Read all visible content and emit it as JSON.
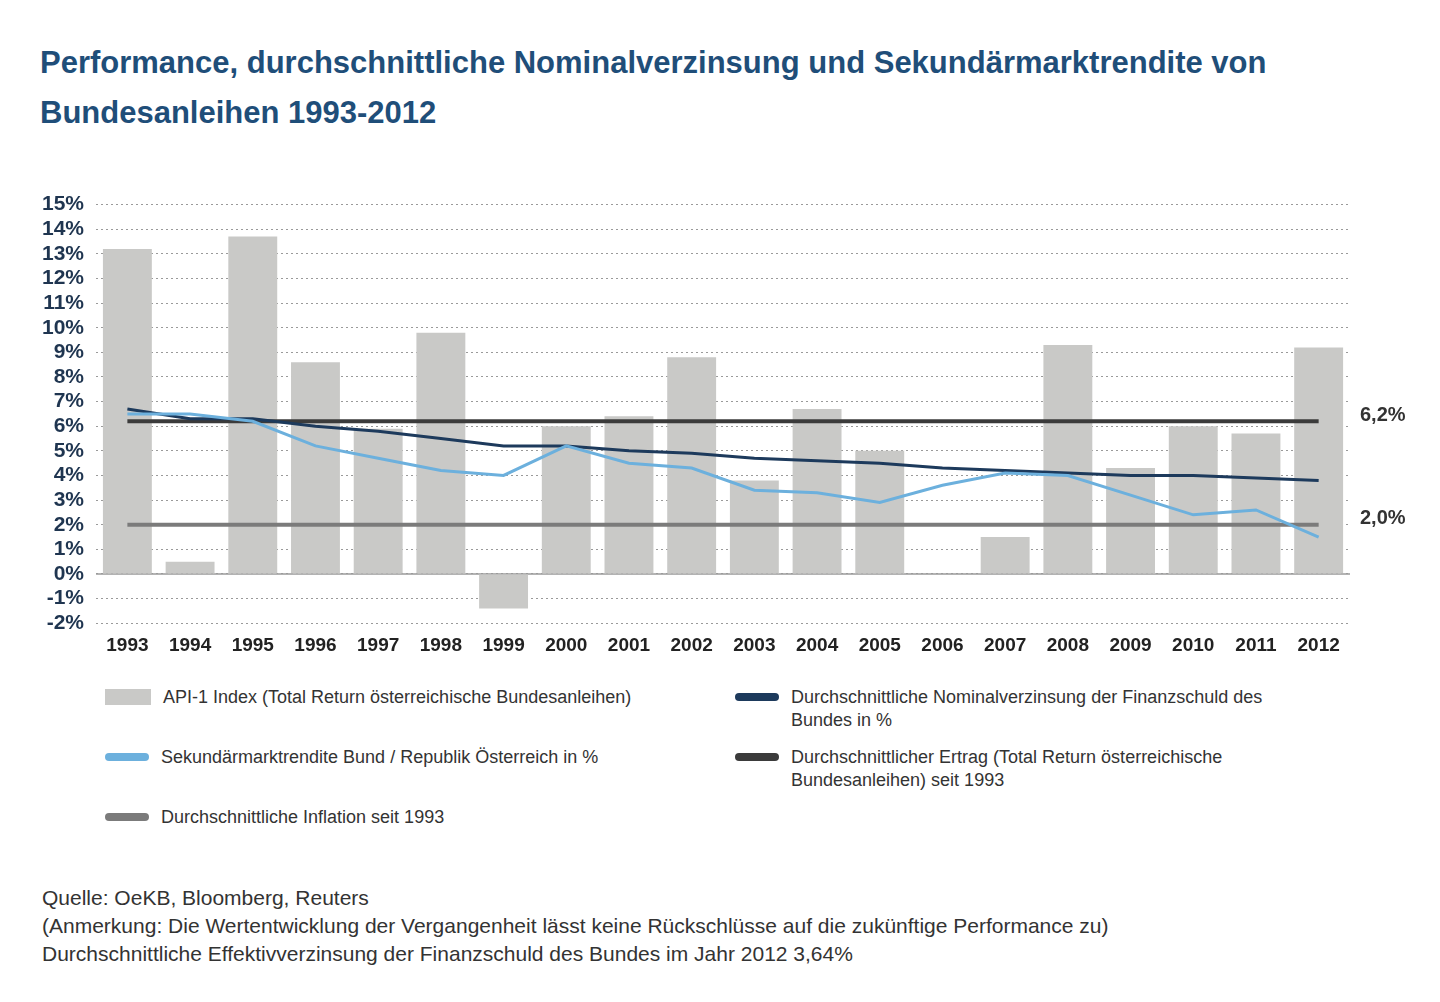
{
  "chart_data": {
    "type": "bar",
    "title": "Performance, durchschnittliche Nominalverzinsung und Sekundärmarktrendite von Bundesanleihen 1993-2012",
    "categories": [
      "1993",
      "1994",
      "1995",
      "1996",
      "1997",
      "1998",
      "1999",
      "2000",
      "2001",
      "2002",
      "2003",
      "2004",
      "2005",
      "2006",
      "2007",
      "2008",
      "2009",
      "2010",
      "2011",
      "2012"
    ],
    "series": [
      {
        "name": "API-1 Index (Total Return österreichische Bundesanleihen)",
        "type": "bar",
        "color": "#c9c9c7",
        "values": [
          13.2,
          0.5,
          13.7,
          8.6,
          5.9,
          9.8,
          -1.4,
          6.0,
          6.4,
          8.8,
          3.8,
          6.7,
          5.0,
          0,
          1.5,
          9.3,
          4.3,
          6.0,
          5.7,
          9.2
        ]
      },
      {
        "name": "Sekundärmarktrendite Bund / Republik Österreich in %",
        "type": "line",
        "color": "#6cb0dd",
        "marker": "none",
        "values": [
          6.5,
          6.5,
          6.2,
          5.2,
          4.7,
          4.2,
          4.0,
          5.2,
          4.5,
          4.3,
          3.4,
          3.3,
          2.9,
          3.6,
          4.1,
          4.0,
          3.2,
          2.4,
          2.6,
          1.5
        ]
      },
      {
        "name": "Durchschnittliche Inflation seit 1993",
        "type": "line",
        "color": "#7b7b7b",
        "marker": "none",
        "end_label": "2,0%",
        "values": [
          2.0,
          2.0,
          2.0,
          2.0,
          2.0,
          2.0,
          2.0,
          2.0,
          2.0,
          2.0,
          2.0,
          2.0,
          2.0,
          2.0,
          2.0,
          2.0,
          2.0,
          2.0,
          2.0,
          2.0
        ]
      },
      {
        "name": "Durchschnittliche Nominalverzinsung der Finanzschuld des Bundes in %",
        "type": "line",
        "color": "#1d3a5c",
        "marker": "none",
        "values": [
          6.7,
          6.3,
          6.3,
          6.0,
          5.8,
          5.5,
          5.2,
          5.2,
          5.0,
          4.9,
          4.7,
          4.6,
          4.5,
          4.3,
          4.2,
          4.1,
          4.0,
          4.0,
          3.9,
          3.8
        ]
      },
      {
        "name": "Durchschnittlicher Ertrag (Total Return österreichische Bundesanleihen) seit 1993",
        "type": "line",
        "color": "#3b3b3b",
        "marker": "none",
        "end_label": "6,2%",
        "values": [
          6.2,
          6.2,
          6.2,
          6.2,
          6.2,
          6.2,
          6.2,
          6.2,
          6.2,
          6.2,
          6.2,
          6.2,
          6.2,
          6.2,
          6.2,
          6.2,
          6.2,
          6.2,
          6.2,
          6.2
        ]
      }
    ],
    "ylim": [
      -2,
      15
    ],
    "yticks": [
      {
        "value": -2,
        "label": "-2%"
      },
      {
        "value": -1,
        "label": "-1%"
      },
      {
        "value": 0,
        "label": "0%"
      },
      {
        "value": 1,
        "label": "1%"
      },
      {
        "value": 2,
        "label": "2%"
      },
      {
        "value": 3,
        "label": "3%"
      },
      {
        "value": 4,
        "label": "4%"
      },
      {
        "value": 5,
        "label": "5%"
      },
      {
        "value": 6,
        "label": "6%"
      },
      {
        "value": 7,
        "label": "7%"
      },
      {
        "value": 8,
        "label": "8%"
      },
      {
        "value": 9,
        "label": "9%"
      },
      {
        "value": 10,
        "label": "10%"
      },
      {
        "value": 11,
        "label": "11%"
      },
      {
        "value": 12,
        "label": "12%"
      },
      {
        "value": 13,
        "label": "13%"
      },
      {
        "value": 14,
        "label": "14%"
      },
      {
        "value": 15,
        "label": "15%"
      }
    ],
    "grid": true,
    "legend": "bottom",
    "footer": [
      "Quelle: OeKB, Bloomberg, Reuters",
      "(Anmerkung: Die Wertentwicklung der Vergangenheit lässt keine Rückschlüsse auf die zukünftige Performance zu)",
      "Durchschnittliche Effektivverzinsung der Finanzschuld des Bundes im Jahr 2012 3,64%"
    ]
  }
}
